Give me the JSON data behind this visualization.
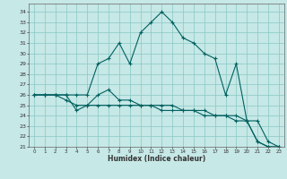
{
  "title": "",
  "xlabel": "Humidex (Indice chaleur)",
  "ylabel": "",
  "background_color": "#c6e8e6",
  "line_color": "#006060",
  "grid_color": "#88c8c4",
  "xlim": [
    -0.5,
    23.5
  ],
  "ylim": [
    21,
    34.8
  ],
  "yticks": [
    21,
    22,
    23,
    24,
    25,
    26,
    27,
    28,
    29,
    30,
    31,
    32,
    33,
    34
  ],
  "xticks": [
    0,
    1,
    2,
    3,
    4,
    5,
    6,
    7,
    8,
    9,
    10,
    11,
    12,
    13,
    14,
    15,
    16,
    17,
    18,
    19,
    20,
    21,
    22,
    23
  ],
  "line1_x": [
    0,
    1,
    2,
    3,
    4,
    5,
    6,
    7,
    8,
    9,
    10,
    11,
    12,
    13,
    14,
    15,
    16,
    17,
    18,
    19,
    20,
    21,
    22,
    23
  ],
  "line1_y": [
    26,
    26,
    26,
    26,
    26,
    26,
    29.0,
    29.5,
    31.0,
    29.0,
    32.0,
    33.0,
    34.0,
    33.0,
    31.5,
    31.0,
    30.0,
    29.5,
    26.0,
    29.0,
    23.5,
    21.5,
    21.0,
    21.0
  ],
  "line2_x": [
    0,
    1,
    2,
    3,
    4,
    5,
    6,
    7,
    8,
    9,
    10,
    11,
    12,
    13,
    14,
    15,
    16,
    17,
    18,
    19,
    20,
    21,
    22,
    23
  ],
  "line2_y": [
    26,
    26,
    26,
    25.5,
    25.0,
    25.0,
    25.0,
    25.0,
    25.0,
    25.0,
    25.0,
    25.0,
    24.5,
    24.5,
    24.5,
    24.5,
    24.0,
    24.0,
    24.0,
    24.0,
    23.5,
    23.5,
    21.5,
    21.0
  ],
  "line3_x": [
    0,
    1,
    2,
    3,
    4,
    5,
    6,
    7,
    8,
    9,
    10,
    11,
    12,
    13,
    14,
    15,
    16,
    17,
    18,
    19,
    20,
    21,
    22,
    23
  ],
  "line3_y": [
    26,
    26,
    26,
    26.0,
    24.5,
    25.0,
    26.0,
    26.5,
    25.5,
    25.5,
    25.0,
    25.0,
    25.0,
    25.0,
    24.5,
    24.5,
    24.5,
    24.0,
    24.0,
    23.5,
    23.5,
    21.5,
    21.0,
    21.0
  ]
}
